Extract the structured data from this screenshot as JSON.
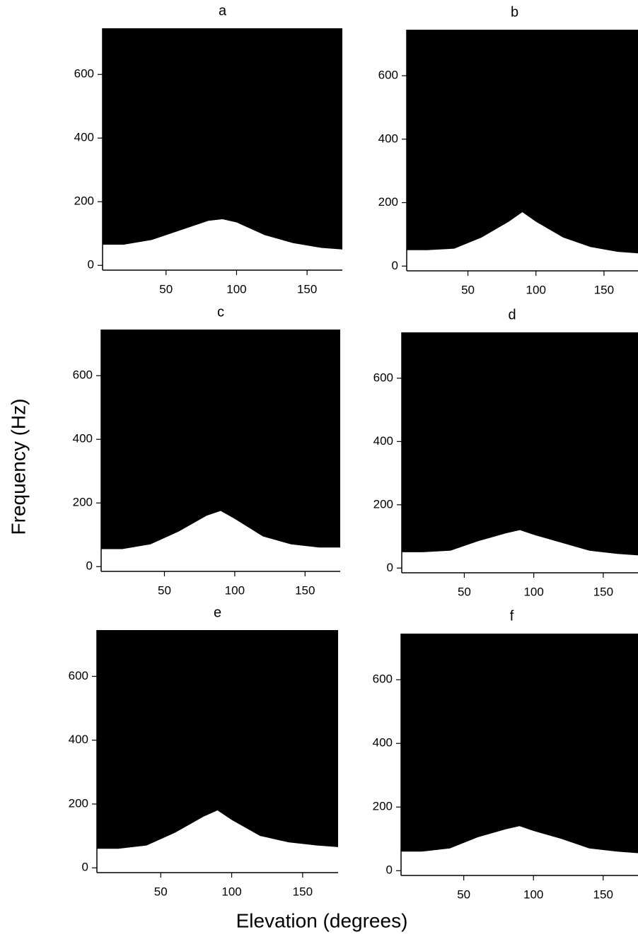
{
  "xlabel": "Elevation (degrees)",
  "ylabel": "Frequency (Hz)",
  "chart_data": [
    {
      "type": "area",
      "title": "a",
      "color": "#ffffff",
      "background": "#000000",
      "x": [
        5,
        20,
        40,
        60,
        80,
        90,
        100,
        120,
        140,
        160,
        175
      ],
      "values": [
        65,
        65,
        80,
        110,
        140,
        145,
        135,
        95,
        70,
        55,
        50
      ],
      "xlim": [
        5,
        175
      ],
      "ylim": [
        -15,
        745
      ],
      "xticks": [
        50,
        100,
        150
      ],
      "yticks": [
        0,
        200,
        400,
        600
      ]
    },
    {
      "type": "area",
      "title": "b",
      "color": "#ffffff",
      "background": "#000000",
      "x": [
        5,
        20,
        40,
        60,
        80,
        90,
        100,
        120,
        140,
        160,
        175
      ],
      "values": [
        50,
        50,
        55,
        90,
        140,
        170,
        140,
        90,
        60,
        45,
        40
      ],
      "xlim": [
        5,
        175
      ],
      "ylim": [
        -15,
        745
      ],
      "xticks": [
        50,
        100,
        150
      ],
      "yticks": [
        0,
        200,
        400,
        600
      ]
    },
    {
      "type": "area",
      "title": "c",
      "color": "#ffffff",
      "background": "#000000",
      "x": [
        5,
        20,
        40,
        60,
        80,
        90,
        100,
        120,
        140,
        160,
        175
      ],
      "values": [
        55,
        55,
        70,
        110,
        160,
        175,
        150,
        95,
        70,
        60,
        60
      ],
      "xlim": [
        5,
        175
      ],
      "ylim": [
        -15,
        745
      ],
      "xticks": [
        50,
        100,
        150
      ],
      "yticks": [
        0,
        200,
        400,
        600
      ]
    },
    {
      "type": "area",
      "title": "d",
      "color": "#ffffff",
      "background": "#000000",
      "x": [
        5,
        20,
        40,
        60,
        80,
        90,
        100,
        120,
        140,
        160,
        175
      ],
      "values": [
        50,
        50,
        55,
        85,
        110,
        120,
        105,
        80,
        55,
        45,
        40
      ],
      "xlim": [
        5,
        175
      ],
      "ylim": [
        -15,
        745
      ],
      "xticks": [
        50,
        100,
        150
      ],
      "yticks": [
        0,
        200,
        400,
        600
      ]
    },
    {
      "type": "area",
      "title": "e",
      "color": "#ffffff",
      "background": "#000000",
      "x": [
        5,
        20,
        40,
        60,
        80,
        90,
        100,
        120,
        140,
        160,
        175
      ],
      "values": [
        60,
        60,
        70,
        110,
        160,
        180,
        150,
        100,
        80,
        70,
        65
      ],
      "xlim": [
        5,
        175
      ],
      "ylim": [
        -15,
        745
      ],
      "xticks": [
        50,
        100,
        150
      ],
      "yticks": [
        0,
        200,
        400,
        600
      ]
    },
    {
      "type": "area",
      "title": "f",
      "color": "#ffffff",
      "background": "#000000",
      "x": [
        5,
        20,
        40,
        60,
        80,
        90,
        100,
        120,
        140,
        160,
        175
      ],
      "values": [
        60,
        60,
        70,
        105,
        130,
        140,
        125,
        100,
        70,
        60,
        55
      ],
      "xlim": [
        5,
        175
      ],
      "ylim": [
        -15,
        745
      ],
      "xticks": [
        50,
        100,
        150
      ],
      "yticks": [
        0,
        200,
        400,
        600
      ]
    }
  ]
}
